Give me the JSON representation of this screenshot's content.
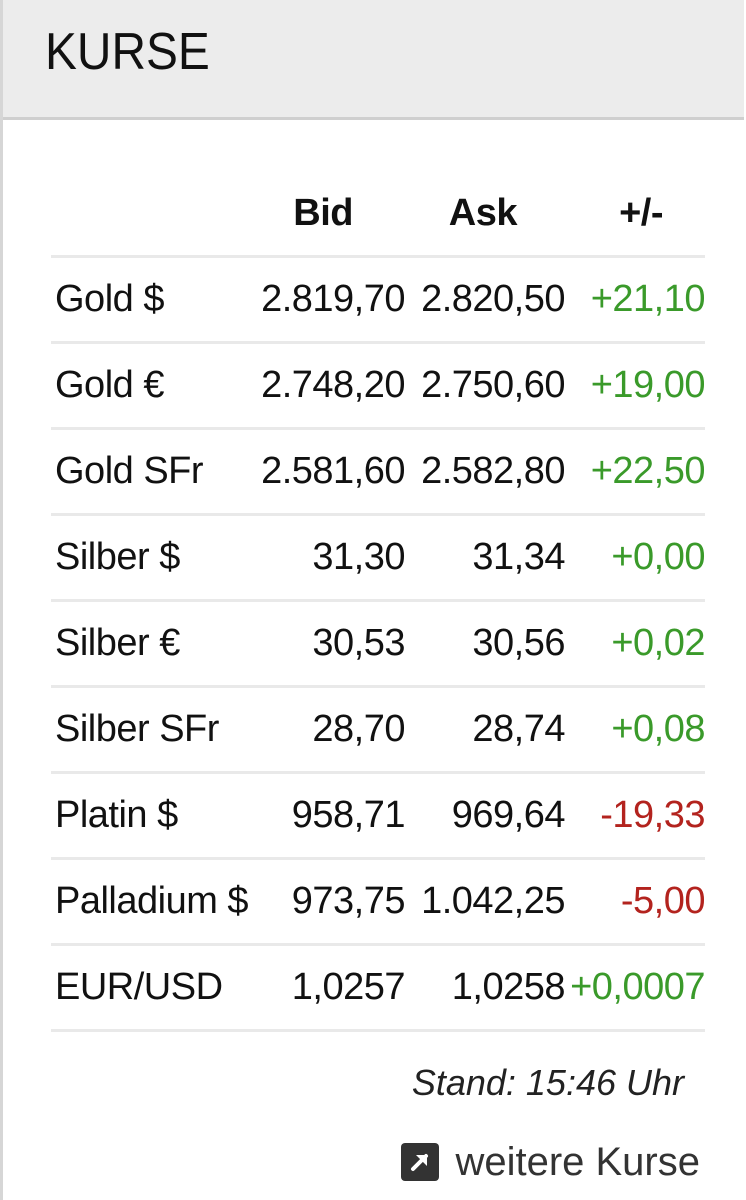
{
  "header": {
    "title": "KURSE"
  },
  "columns": {
    "bid": "Bid",
    "ask": "Ask",
    "change": "+/-"
  },
  "rows": [
    {
      "name": "Gold $",
      "bid": "2.819,70",
      "ask": "2.820,50",
      "change": "+21,10",
      "dir": "pos"
    },
    {
      "name": "Gold €",
      "bid": "2.748,20",
      "ask": "2.750,60",
      "change": "+19,00",
      "dir": "pos"
    },
    {
      "name": "Gold SFr",
      "bid": "2.581,60",
      "ask": "2.582,80",
      "change": "+22,50",
      "dir": "pos"
    },
    {
      "name": "Silber $",
      "bid": "31,30",
      "ask": "31,34",
      "change": "+0,00",
      "dir": "pos"
    },
    {
      "name": "Silber €",
      "bid": "30,53",
      "ask": "30,56",
      "change": "+0,02",
      "dir": "pos"
    },
    {
      "name": "Silber SFr",
      "bid": "28,70",
      "ask": "28,74",
      "change": "+0,08",
      "dir": "pos"
    },
    {
      "name": "Platin $",
      "bid": "958,71",
      "ask": "969,64",
      "change": "-19,33",
      "dir": "neg"
    },
    {
      "name": "Palladium $",
      "bid": "973,75",
      "ask": "1.042,25",
      "change": "-5,00",
      "dir": "neg"
    },
    {
      "name": "EUR/USD",
      "bid": "1,0257",
      "ask": "1,0258",
      "change": "+0,0007",
      "dir": "pos"
    }
  ],
  "footer": {
    "stand": "Stand: 15:46 Uhr",
    "more_label": "weitere Kurse",
    "more_icon": "external-link-icon"
  },
  "colors": {
    "positive": "#3a9a2a",
    "negative": "#b3231e",
    "header_bg": "#ececec"
  }
}
